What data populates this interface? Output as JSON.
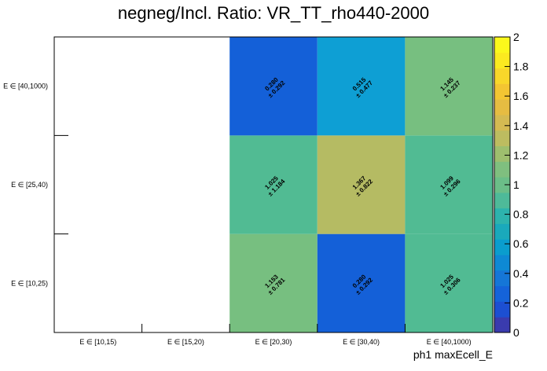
{
  "chart_data": {
    "type": "heatmap",
    "title": "negneg/Incl. Ratio: VR_TT_rho440-2000",
    "xlabel": "ph1 maxEcell_E",
    "ylabel": "",
    "x_categories": [
      "E ∈ [10,15)",
      "E ∈ [15,20)",
      "E ∈ [20,30)",
      "E ∈ [30,40)",
      "E ∈ [40,1000)"
    ],
    "y_categories": [
      "E ∈ [10,25)",
      "E ∈ [25,40)",
      "E ∈ [40,1000)"
    ],
    "zlim": [
      0,
      2
    ],
    "z_ticks": [
      "0",
      "0.2",
      "0.4",
      "0.6",
      "0.8",
      "1",
      "1.2",
      "1.4",
      "1.6",
      "1.8",
      "2"
    ],
    "cells": [
      {
        "x": 2,
        "y": 0,
        "value": 1.153,
        "error": 0.781,
        "value_label": "1.153",
        "error_label": "± 0.781",
        "color": "#77bf80"
      },
      {
        "x": 3,
        "y": 0,
        "value": 0.28,
        "error": 0.292,
        "value_label": "0.280",
        "error_label": "± 0.292",
        "color": "#1460d8"
      },
      {
        "x": 4,
        "y": 0,
        "value": 1.025,
        "error": 0.306,
        "value_label": "1.025",
        "error_label": "± 0.306",
        "color": "#51bb93"
      },
      {
        "x": 2,
        "y": 1,
        "value": 1.025,
        "error": 1.184,
        "value_label": "1.025",
        "error_label": "± 1.184",
        "color": "#51bb93"
      },
      {
        "x": 3,
        "y": 1,
        "value": 1.367,
        "error": 0.822,
        "value_label": "1.367",
        "error_label": "± 0.822",
        "color": "#b5bb63"
      },
      {
        "x": 4,
        "y": 1,
        "value": 1.099,
        "error": 0.296,
        "value_label": "1.099",
        "error_label": "± 0.296",
        "color": "#51bb93"
      },
      {
        "x": 2,
        "y": 2,
        "value": 0.28,
        "error": 0.292,
        "value_label": "0.280",
        "error_label": "± 0.292",
        "color": "#1460d8"
      },
      {
        "x": 3,
        "y": 2,
        "value": 0.515,
        "error": 0.477,
        "value_label": "0.515",
        "error_label": "± 0.477",
        "color": "#0e9fd4"
      },
      {
        "x": 4,
        "y": 2,
        "value": 1.145,
        "error": 0.237,
        "value_label": "1.145",
        "error_label": "± 0.237",
        "color": "#77bf80"
      }
    ],
    "palette": [
      "#3a3bae",
      "#1c4fd2",
      "#1563d9",
      "#1576d7",
      "#0e89d4",
      "#0a9dce",
      "#1aa9bb",
      "#2db3ad",
      "#4eba99",
      "#6bbe88",
      "#7fbf7f",
      "#9ebe6e",
      "#bdbc60",
      "#d4ba52",
      "#e6bc42",
      "#f3c532",
      "#f8d72a",
      "#fbea20",
      "#fbf81c"
    ]
  }
}
